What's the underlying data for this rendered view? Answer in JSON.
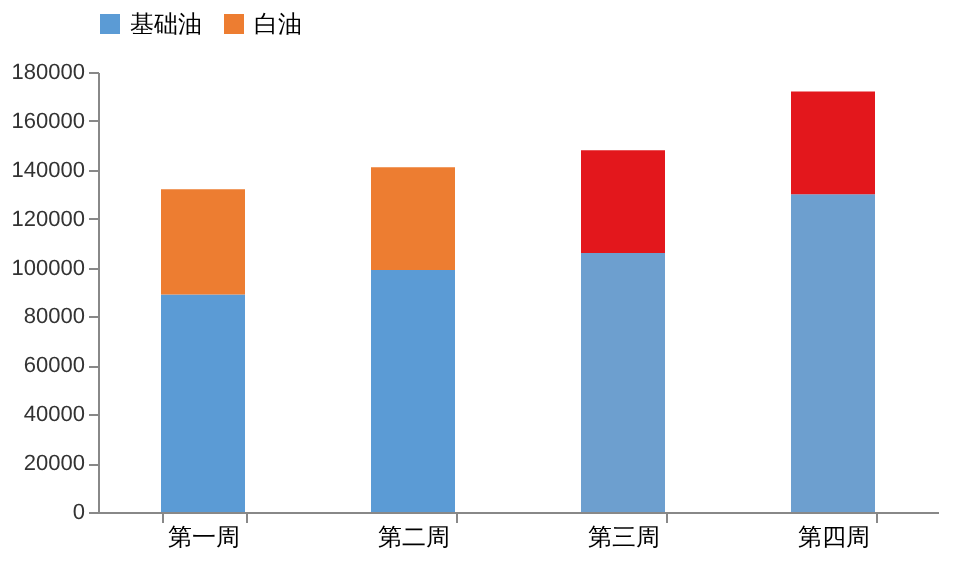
{
  "chart_data": {
    "type": "bar",
    "stacked": true,
    "categories": [
      "第一周",
      "第二周",
      "第三周",
      "第四周"
    ],
    "series": [
      {
        "name": "基础油",
        "color": "#5b9bd5",
        "colors": [
          "#5b9bd5",
          "#5b9bd5",
          "#6d9fcf",
          "#6d9fcf"
        ],
        "values": [
          89000,
          99000,
          106000,
          130000
        ]
      },
      {
        "name": "白油",
        "color": "#ed7d31",
        "colors": [
          "#ed7d31",
          "#ed7d31",
          "#e3171c",
          "#e3171c"
        ],
        "values": [
          43000,
          42000,
          42000,
          42000
        ]
      }
    ],
    "ylim": [
      0,
      180000
    ],
    "yticks": [
      0,
      20000,
      40000,
      60000,
      80000,
      100000,
      120000,
      140000,
      160000,
      180000
    ],
    "grid": false,
    "legend": "top"
  }
}
